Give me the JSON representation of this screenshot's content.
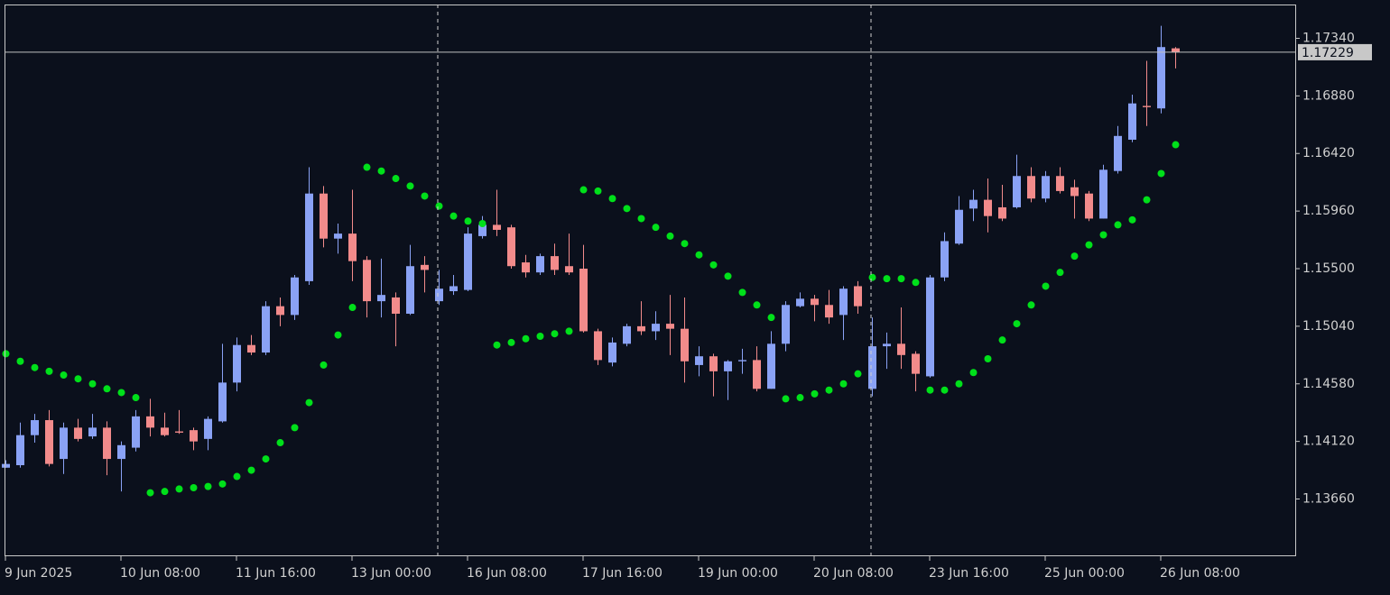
{
  "chart_data": {
    "type": "candlestick",
    "categories": [
      "9 Jun 2025",
      null,
      null,
      null,
      null,
      null,
      null,
      null,
      "10 Jun 08:00",
      null,
      null,
      null,
      null,
      null,
      null,
      null,
      "11 Jun 16:00",
      null,
      null,
      null,
      null,
      null,
      null,
      null,
      "13 Jun 00:00",
      null,
      null,
      null,
      null,
      null,
      null,
      null,
      "16 Jun 08:00",
      null,
      null,
      null,
      null,
      null,
      null,
      null,
      "17 Jun 16:00",
      null,
      null,
      null,
      null,
      null,
      null,
      null,
      "19 Jun 00:00",
      null,
      null,
      null,
      null,
      null,
      null,
      null,
      "20 Jun 08:00",
      null,
      null,
      null,
      null,
      null,
      null,
      null,
      "23 Jun 16:00",
      null,
      null,
      null,
      null,
      null,
      null,
      null,
      "25 Jun 00:00",
      null,
      null,
      null,
      null,
      null,
      null,
      null,
      "26 Jun 08:00",
      null
    ],
    "open": [
      1.1391,
      1.1393,
      1.1417,
      1.1429,
      1.1398,
      1.1423,
      1.1416,
      1.1423,
      1.1398,
      1.1407,
      1.1432,
      1.1423,
      1.142,
      1.1421,
      1.1414,
      1.1428,
      1.1459,
      1.1489,
      1.1483,
      1.152,
      1.1513,
      1.154,
      1.161,
      1.1574,
      1.1578,
      1.1557,
      1.1524,
      1.1527,
      1.1514,
      1.1553,
      1.1524,
      1.1532,
      1.1533,
      1.1576,
      1.1585,
      1.1583,
      1.1555,
      1.1547,
      1.156,
      1.1552,
      1.155,
      1.15,
      1.1475,
      1.149,
      1.1504,
      1.15,
      1.1506,
      1.1502,
      1.1473,
      1.148,
      1.1468,
      1.1476,
      1.1477,
      1.1454,
      1.149,
      1.152,
      1.1526,
      1.1521,
      1.1513,
      1.1536,
      1.1454,
      1.1488,
      1.149,
      1.1482,
      1.1464,
      1.1543,
      1.157,
      1.1598,
      1.1605,
      1.1599,
      1.1599,
      1.1624,
      1.1606,
      1.1624,
      1.1615,
      1.161,
      1.159,
      1.1628,
      1.1653,
      1.168,
      1.1678,
      1.1726
    ],
    "high": [
      1.1397,
      1.1427,
      1.1434,
      1.1437,
      1.1427,
      1.143,
      1.1434,
      1.1428,
      1.1412,
      1.1437,
      1.1446,
      1.1435,
      1.1437,
      1.1423,
      1.1432,
      1.149,
      1.1495,
      1.1497,
      1.1524,
      1.1527,
      1.1545,
      1.1631,
      1.1616,
      1.1586,
      1.1613,
      1.156,
      1.1558,
      1.1531,
      1.1569,
      1.156,
      1.1549,
      1.1545,
      1.1583,
      1.1592,
      1.1613,
      1.1585,
      1.1561,
      1.1562,
      1.157,
      1.1578,
      1.1569,
      1.1502,
      1.1495,
      1.1506,
      1.1524,
      1.1516,
      1.1529,
      1.1527,
      1.1488,
      1.1482,
      1.1477,
      1.1486,
      1.1488,
      1.15,
      1.1524,
      1.1531,
      1.1529,
      1.1533,
      1.1536,
      1.154,
      1.1511,
      1.1499,
      1.1519,
      1.1484,
      1.1545,
      1.1579,
      1.1608,
      1.1613,
      1.1622,
      1.1617,
      1.1641,
      1.1631,
      1.1628,
      1.1631,
      1.1621,
      1.1612,
      1.1633,
      1.1664,
      1.1689,
      1.1716,
      1.1744,
      1.1727
    ],
    "low": [
      1.1391,
      1.1391,
      1.1411,
      1.1392,
      1.1386,
      1.1412,
      1.1414,
      1.1385,
      1.1372,
      1.1404,
      1.1416,
      1.1416,
      1.1418,
      1.1405,
      1.1405,
      1.1427,
      1.1452,
      1.1481,
      1.1481,
      1.1504,
      1.1509,
      1.1537,
      1.1567,
      1.1562,
      1.154,
      1.1511,
      1.1511,
      1.1488,
      1.1513,
      1.1531,
      1.1521,
      1.1529,
      1.1532,
      1.1574,
      1.1576,
      1.155,
      1.1543,
      1.1545,
      1.1545,
      1.1545,
      1.1499,
      1.1473,
      1.1472,
      1.1488,
      1.1497,
      1.1493,
      1.1481,
      1.1459,
      1.1464,
      1.1448,
      1.1445,
      1.1466,
      1.1452,
      1.1454,
      1.1484,
      1.1519,
      1.1508,
      1.1506,
      1.1493,
      1.1514,
      1.1448,
      1.147,
      1.147,
      1.1452,
      1.1463,
      1.154,
      1.1569,
      1.1588,
      1.1579,
      1.1588,
      1.1598,
      1.1603,
      1.1603,
      1.161,
      1.159,
      1.1588,
      1.159,
      1.1626,
      1.1651,
      1.1664,
      1.1674,
      1.171
    ],
    "close": [
      1.1394,
      1.1417,
      1.1429,
      1.1394,
      1.1423,
      1.1414,
      1.1423,
      1.1398,
      1.1409,
      1.1432,
      1.1423,
      1.1417,
      1.1419,
      1.1412,
      1.143,
      1.1459,
      1.1489,
      1.1483,
      1.152,
      1.1513,
      1.1543,
      1.161,
      1.1574,
      1.1578,
      1.1556,
      1.1524,
      1.1529,
      1.1514,
      1.1552,
      1.1549,
      1.1534,
      1.1536,
      1.1578,
      1.1585,
      1.1581,
      1.1552,
      1.1547,
      1.156,
      1.1549,
      1.1547,
      1.15,
      1.1477,
      1.1491,
      1.1504,
      1.15,
      1.1506,
      1.1502,
      1.1476,
      1.148,
      1.1468,
      1.1476,
      1.1477,
      1.1454,
      1.149,
      1.1521,
      1.1526,
      1.1521,
      1.1511,
      1.1534,
      1.152,
      1.1488,
      1.149,
      1.1481,
      1.1466,
      1.1543,
      1.1572,
      1.1597,
      1.1605,
      1.1592,
      1.159,
      1.1624,
      1.1606,
      1.1624,
      1.1612,
      1.1608,
      1.159,
      1.1629,
      1.1656,
      1.1682,
      1.1679,
      1.1727,
      1.1723
    ],
    "up_color": "#8aa2f5",
    "down_color": "#f28b8b",
    "sar": {
      "color": "#00e01a",
      "values": [
        1.1482,
        1.1476,
        1.1471,
        1.1468,
        1.1465,
        1.1462,
        1.1458,
        1.1454,
        1.1451,
        1.1447,
        1.1371,
        1.1372,
        1.1374,
        1.1375,
        1.1376,
        1.1378,
        1.1384,
        1.1389,
        1.1398,
        1.1411,
        1.1423,
        1.1443,
        1.1473,
        1.1497,
        1.1519,
        1.1631,
        1.1628,
        1.1622,
        1.1616,
        1.1608,
        1.16,
        1.1592,
        1.1588,
        1.1586,
        1.1489,
        1.1491,
        1.1494,
        1.1496,
        1.1498,
        1.15,
        1.1613,
        1.1612,
        1.1606,
        1.1598,
        1.159,
        1.1583,
        1.1576,
        1.157,
        1.1561,
        1.1553,
        1.1544,
        1.1531,
        1.1521,
        1.1511,
        1.1446,
        1.1447,
        1.145,
        1.1453,
        1.1458,
        1.1466,
        1.1543,
        1.1542,
        1.1542,
        1.1539,
        1.1453,
        1.1453,
        1.1458,
        1.1467,
        1.1478,
        1.1493,
        1.1506,
        1.1521,
        1.1536,
        1.1547,
        1.156,
        1.1569,
        1.1577,
        1.1585,
        1.1589,
        1.1605,
        1.1626,
        1.1649
      ]
    },
    "ylim": [
      1.1321,
      1.1761
    ],
    "yticks": [
      {
        "value": 1.1734,
        "label": "1.17340"
      },
      {
        "value": 1.1688,
        "label": "1.16880"
      },
      {
        "value": 1.1642,
        "label": "1.16420"
      },
      {
        "value": 1.1596,
        "label": "1.15960"
      },
      {
        "value": 1.155,
        "label": "1.15500"
      },
      {
        "value": 1.1504,
        "label": "1.15040"
      },
      {
        "value": 1.1458,
        "label": "1.14580"
      },
      {
        "value": 1.1412,
        "label": "1.14120"
      },
      {
        "value": 1.1366,
        "label": "1.13660"
      }
    ],
    "current_price": {
      "value": 1.17229,
      "label": "1.17229"
    }
  }
}
